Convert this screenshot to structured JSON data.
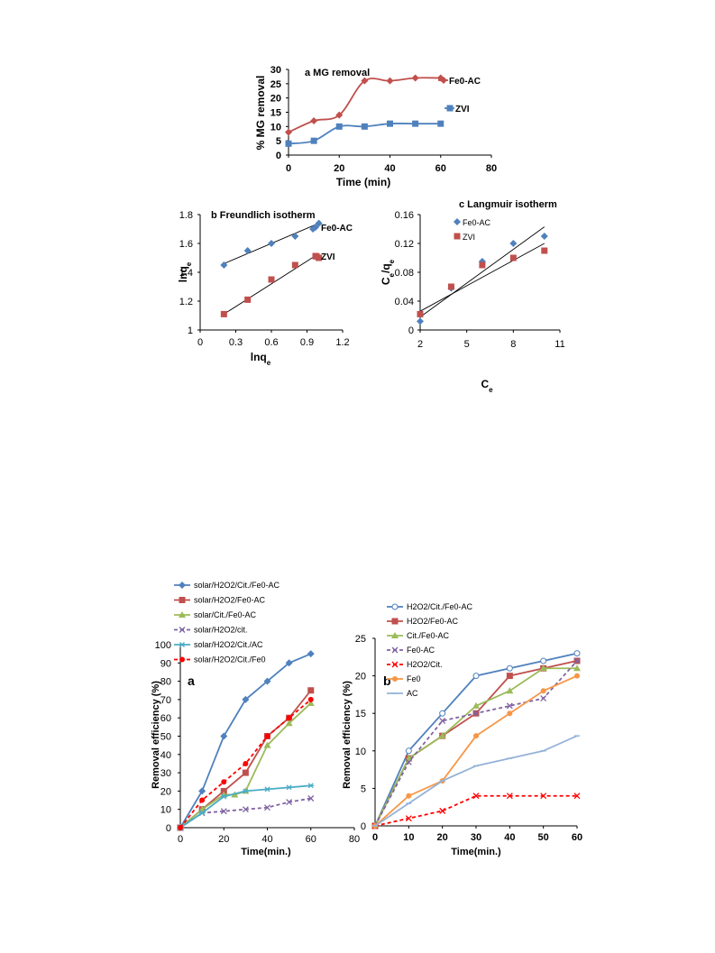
{
  "chart_data": [
    {
      "id": "mg",
      "type": "line",
      "title": "a MG removal",
      "xlabel": "Time (min)",
      "ylabel": "% MG removal",
      "xlim": [
        0,
        80
      ],
      "ylim": [
        0,
        30
      ],
      "xticks": [
        "0",
        "20",
        "40",
        "60",
        "80"
      ],
      "yticks": [
        "0",
        "5",
        "10",
        "15",
        "20",
        "25",
        "30"
      ],
      "series": [
        {
          "name": "Fe0-AC",
          "color": "#c0504d",
          "marker": "diamond",
          "x": [
            0,
            10,
            20,
            30,
            40,
            50,
            60
          ],
          "y": [
            8,
            12,
            14,
            26,
            26,
            27,
            27
          ]
        },
        {
          "name": "ZVI",
          "color": "#4f81bd",
          "marker": "square",
          "x": [
            0,
            10,
            20,
            30,
            40,
            50,
            60
          ],
          "y": [
            4,
            5,
            10,
            10,
            11,
            11,
            11
          ]
        }
      ]
    },
    {
      "id": "freundlich",
      "type": "scatter",
      "title": "b  Freundlich isotherm",
      "xlabel": "lnq",
      "xlabel_sub": "e",
      "ylabel": "lnq",
      "ylabel_sub": "e",
      "xlim": [
        0,
        1.2
      ],
      "ylim": [
        1,
        1.8
      ],
      "xticks": [
        "0",
        "0.3",
        "0.6",
        "0.9",
        "1.2"
      ],
      "yticks": [
        "1",
        "1.2",
        "1.4",
        "1.6",
        "1.8"
      ],
      "series": [
        {
          "name": "Fe0-AC",
          "color": "#4f81bd",
          "marker": "diamond",
          "x": [
            0.2,
            0.4,
            0.6,
            0.8,
            0.95,
            1.0
          ],
          "y": [
            1.45,
            1.55,
            1.6,
            1.65,
            1.7,
            1.74
          ],
          "fit": [
            [
              0.2,
              1.46
            ],
            [
              1.0,
              1.74
            ]
          ]
        },
        {
          "name": "ZVI",
          "color": "#c0504d",
          "marker": "square",
          "x": [
            0.2,
            0.4,
            0.6,
            0.8,
            0.98,
            1.0
          ],
          "y": [
            1.11,
            1.21,
            1.35,
            1.45,
            1.51,
            1.5
          ],
          "fit": [
            [
              0.2,
              1.11
            ],
            [
              1.0,
              1.53
            ]
          ]
        }
      ]
    },
    {
      "id": "langmuir",
      "type": "scatter",
      "title": "c Langmuir isotherm",
      "xlabel": "C",
      "xlabel_sub": "e",
      "ylabel": "C",
      "ylabel_sub": "e",
      "ylabel_rest": "/q",
      "ylabel_sub2": "e",
      "xlim": [
        2,
        11
      ],
      "ylim": [
        0,
        0.16
      ],
      "xticks": [
        "2",
        "5",
        "8",
        "11"
      ],
      "xtick_vals": [
        2,
        5,
        8,
        11
      ],
      "yticks": [
        "0",
        "0.04",
        "0.08",
        "0.12",
        "0.16"
      ],
      "series": [
        {
          "name": "Fe0-AC",
          "color": "#4f81bd",
          "marker": "diamond",
          "x": [
            2,
            4,
            6,
            8,
            10
          ],
          "y": [
            0.012,
            0.058,
            0.095,
            0.12,
            0.13
          ],
          "fit": [
            [
              2,
              0.018
            ],
            [
              10,
              0.143
            ]
          ]
        },
        {
          "name": "ZVI",
          "color": "#c0504d",
          "marker": "square",
          "x": [
            2,
            4,
            6,
            8,
            10
          ],
          "y": [
            0.022,
            0.06,
            0.09,
            0.1,
            0.11
          ],
          "fit": [
            [
              2,
              0.026
            ],
            [
              10,
              0.12
            ]
          ]
        }
      ]
    },
    {
      "id": "solar",
      "type": "line",
      "title": "",
      "panel": "a",
      "xlabel": "Time(min.)",
      "ylabel": "Removal efficiency (%)",
      "xlim": [
        0,
        80
      ],
      "ylim": [
        0,
        100
      ],
      "xticks": [
        "0",
        "20",
        "40",
        "60",
        "80"
      ],
      "yticks": [
        "0",
        "10",
        "20",
        "30",
        "40",
        "50",
        "60",
        "70",
        "80",
        "90",
        "100"
      ],
      "series": [
        {
          "name": "solar/H2O2/Cit./Fe0-AC",
          "color": "#4f81bd",
          "marker": "diamond",
          "dash": false,
          "x": [
            0,
            10,
            20,
            30,
            40,
            50,
            60
          ],
          "y": [
            0,
            20,
            50,
            70,
            80,
            90,
            95
          ]
        },
        {
          "name": "solar/H2O2/Fe0-AC",
          "color": "#c0504d",
          "marker": "square",
          "dash": false,
          "x": [
            0,
            10,
            20,
            30,
            40,
            50,
            60
          ],
          "y": [
            0,
            10,
            20,
            30,
            50,
            60,
            75
          ]
        },
        {
          "name": "solar/Cit./Fe0-AC",
          "color": "#9bbb59",
          "marker": "triangle",
          "dash": false,
          "x": [
            0,
            10,
            20,
            25,
            30,
            40,
            50,
            60
          ],
          "y": [
            0,
            10,
            18,
            18,
            20,
            45,
            57,
            68
          ]
        },
        {
          "name": "solar/H2O2/cit.",
          "color": "#8064a2",
          "marker": "x",
          "dash": true,
          "x": [
            0,
            10,
            20,
            30,
            40,
            50,
            60
          ],
          "y": [
            0,
            8,
            9,
            10,
            11,
            14,
            16
          ]
        },
        {
          "name": "solar/H2O2/Cit./AC",
          "color": "#4bacc6",
          "marker": "star",
          "dash": false,
          "x": [
            0,
            10,
            20,
            30,
            40,
            50,
            60
          ],
          "y": [
            0,
            8,
            17,
            20,
            21,
            22,
            23
          ]
        },
        {
          "name": "solar/H2O2/Cit./Fe0",
          "color": "#ff0000",
          "marker": "circle",
          "dash": true,
          "x": [
            0,
            10,
            20,
            30,
            40,
            50,
            60
          ],
          "y": [
            0,
            15,
            25,
            35,
            50,
            60,
            70
          ]
        }
      ]
    },
    {
      "id": "dark",
      "type": "line",
      "title": "",
      "panel": "b",
      "xlabel": "Time(min.)",
      "ylabel": "Removal efficiency (%)",
      "xlim": [
        0,
        60
      ],
      "ylim": [
        0,
        25
      ],
      "xticks": [
        "0",
        "10",
        "20",
        "30",
        "40",
        "50",
        "60"
      ],
      "yticks": [
        "0",
        "5",
        "10",
        "15",
        "20",
        "25"
      ],
      "series": [
        {
          "name": "H2O2/Cit./Fe0-AC",
          "color": "#4f81bd",
          "marker": "ocircle",
          "dash": false,
          "x": [
            0,
            10,
            20,
            30,
            40,
            50,
            60
          ],
          "y": [
            0,
            10,
            15,
            20,
            21,
            22,
            23
          ]
        },
        {
          "name": "H2O2/Fe0-AC",
          "color": "#c0504d",
          "marker": "square",
          "dash": false,
          "x": [
            0,
            10,
            20,
            30,
            40,
            50,
            60
          ],
          "y": [
            0,
            9,
            12,
            15,
            20,
            21,
            22
          ]
        },
        {
          "name": "Cit./Fe0-AC",
          "color": "#9bbb59",
          "marker": "triangle",
          "dash": false,
          "x": [
            0,
            10,
            20,
            30,
            40,
            50,
            60
          ],
          "y": [
            0,
            9,
            12,
            16,
            18,
            21,
            21
          ]
        },
        {
          "name": "Fe0-AC",
          "color": "#8064a2",
          "marker": "x",
          "dash": true,
          "x": [
            0,
            10,
            20,
            30,
            40,
            50,
            60
          ],
          "y": [
            0,
            8.5,
            14,
            15,
            16,
            17,
            22
          ]
        },
        {
          "name": "H2O2/Cit.",
          "color": "#ff0000",
          "marker": "x",
          "dash": true,
          "x": [
            0,
            10,
            20,
            30,
            40,
            50,
            60
          ],
          "y": [
            0,
            1,
            2,
            4,
            4,
            4,
            4
          ]
        },
        {
          "name": "Fe0",
          "color": "#f79646",
          "marker": "circle",
          "dash": false,
          "x": [
            0,
            10,
            20,
            30,
            40,
            50,
            60
          ],
          "y": [
            0,
            4,
            6,
            12,
            15,
            18,
            20
          ]
        },
        {
          "name": "AC",
          "color": "#95b3d7",
          "marker": "dash",
          "dash": false,
          "x": [
            0,
            10,
            20,
            30,
            40,
            50,
            60
          ],
          "y": [
            0,
            3,
            6,
            8,
            9,
            10,
            12
          ]
        }
      ]
    }
  ]
}
